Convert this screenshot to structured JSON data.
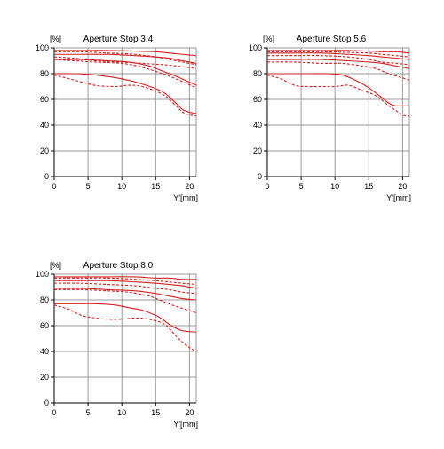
{
  "chart_data": [
    {
      "type": "line",
      "title": "Aperture Stop 3.4",
      "ylabel": "[%]",
      "xlabel": "Y'[mm]",
      "xlim": [
        0,
        21
      ],
      "ylim": [
        0,
        100
      ],
      "xticks": [
        "0",
        "5",
        "10",
        "15",
        "20"
      ],
      "yticks": [
        "0",
        "20",
        "40",
        "60",
        "80",
        "100"
      ],
      "grid": true,
      "color": "#d61f1f",
      "series": [
        {
          "style": "solid",
          "x": [
            0,
            4,
            8,
            12,
            15,
            17,
            19,
            21
          ],
          "y": [
            98,
            98,
            98,
            97.5,
            97,
            96,
            95,
            94
          ]
        },
        {
          "style": "dashed",
          "x": [
            0,
            4,
            8,
            12,
            15,
            17,
            19,
            21
          ],
          "y": [
            97,
            97,
            96,
            95,
            93,
            91,
            89,
            87
          ]
        },
        {
          "style": "solid",
          "x": [
            0,
            4,
            8,
            12,
            15,
            17,
            19,
            21
          ],
          "y": [
            95,
            95,
            95,
            94,
            93,
            92,
            90,
            88
          ]
        },
        {
          "style": "dashed",
          "x": [
            0,
            3,
            6,
            10,
            13,
            16,
            18,
            21
          ],
          "y": [
            93,
            92,
            90,
            89,
            88,
            87,
            86,
            84
          ]
        },
        {
          "style": "solid",
          "x": [
            0,
            4,
            8,
            11,
            14,
            16,
            18,
            21
          ],
          "y": [
            91,
            91,
            90,
            89,
            86,
            82,
            78,
            71
          ]
        },
        {
          "style": "dashed",
          "x": [
            0,
            3,
            6,
            10,
            13,
            16,
            18,
            21
          ],
          "y": [
            91,
            90,
            89,
            88,
            85,
            80,
            76,
            69
          ]
        },
        {
          "style": "solid",
          "x": [
            0,
            3,
            6,
            10,
            13,
            16,
            18,
            19,
            20,
            21
          ],
          "y": [
            80,
            80,
            79,
            76,
            72,
            66,
            57,
            52,
            50,
            49
          ]
        },
        {
          "style": "dashed",
          "x": [
            0,
            3,
            6,
            9,
            11,
            13,
            16,
            18,
            19,
            20,
            21
          ],
          "y": [
            79,
            75,
            71,
            70,
            71,
            70,
            64,
            55,
            50,
            48,
            47
          ]
        }
      ]
    },
    {
      "type": "line",
      "title": "Aperture Stop 5.6",
      "ylabel": "[%]",
      "xlabel": "Y'[mm]",
      "xlim": [
        0,
        21
      ],
      "ylim": [
        0,
        100
      ],
      "xticks": [
        "0",
        "5",
        "10",
        "15",
        "20"
      ],
      "yticks": [
        "0",
        "20",
        "40",
        "60",
        "80",
        "100"
      ],
      "grid": true,
      "color": "#d61f1f",
      "series": [
        {
          "style": "solid",
          "x": [
            0,
            4,
            8,
            12,
            15,
            17,
            19,
            21
          ],
          "y": [
            98,
            98,
            98,
            98,
            97.5,
            97,
            97,
            96
          ]
        },
        {
          "style": "dashed",
          "x": [
            0,
            4,
            8,
            12,
            15,
            17,
            19,
            21
          ],
          "y": [
            97,
            97,
            97,
            96.5,
            96,
            95,
            94,
            93
          ]
        },
        {
          "style": "solid",
          "x": [
            0,
            4,
            8,
            12,
            15,
            17,
            19,
            21
          ],
          "y": [
            96,
            96,
            96,
            95,
            94,
            93,
            92,
            91
          ]
        },
        {
          "style": "dashed",
          "x": [
            0,
            4,
            8,
            12,
            15,
            17,
            19,
            21
          ],
          "y": [
            94,
            94,
            94,
            93,
            91,
            89,
            88,
            87
          ]
        },
        {
          "style": "solid",
          "x": [
            0,
            4,
            8,
            12,
            15,
            17,
            19,
            21
          ],
          "y": [
            91,
            91,
            91,
            90,
            89,
            88,
            86,
            84
          ]
        },
        {
          "style": "dashed",
          "x": [
            0,
            4,
            8,
            11,
            14,
            16,
            18,
            21
          ],
          "y": [
            89,
            89,
            88,
            88,
            86,
            84,
            80,
            75
          ]
        },
        {
          "style": "solid",
          "x": [
            0,
            3,
            6,
            9,
            11,
            13,
            15,
            17,
            18,
            19,
            21
          ],
          "y": [
            80,
            80,
            80,
            80,
            79,
            75,
            69,
            61,
            57,
            55,
            55
          ]
        },
        {
          "style": "dashed",
          "x": [
            0,
            2,
            4,
            6,
            8,
            10,
            12,
            14,
            16,
            18,
            20,
            21
          ],
          "y": [
            79,
            76,
            71,
            70,
            70,
            70,
            71,
            67,
            63,
            55,
            48,
            47
          ]
        }
      ]
    },
    {
      "type": "line",
      "title": "Aperture Stop 8.0",
      "ylabel": "[%]",
      "xlabel": "Y'[mm]",
      "xlim": [
        0,
        21
      ],
      "ylim": [
        0,
        100
      ],
      "xticks": [
        "0",
        "5",
        "10",
        "15",
        "20"
      ],
      "yticks": [
        "0",
        "20",
        "40",
        "60",
        "80",
        "100"
      ],
      "grid": true,
      "color": "#d61f1f",
      "series": [
        {
          "style": "solid",
          "x": [
            0,
            4,
            8,
            12,
            15,
            17,
            19,
            21
          ],
          "y": [
            98,
            98,
            98,
            98,
            97,
            97,
            96,
            96
          ]
        },
        {
          "style": "dashed",
          "x": [
            0,
            4,
            8,
            12,
            15,
            17,
            19,
            21
          ],
          "y": [
            97,
            97,
            97,
            96,
            95,
            94,
            93,
            92
          ]
        },
        {
          "style": "solid",
          "x": [
            0,
            4,
            8,
            12,
            15,
            17,
            19,
            21
          ],
          "y": [
            95,
            95,
            95,
            94,
            93,
            92,
            91,
            89
          ]
        },
        {
          "style": "dashed",
          "x": [
            0,
            4,
            8,
            12,
            15,
            17,
            19,
            21
          ],
          "y": [
            93,
            93,
            92,
            91,
            89,
            88,
            86,
            85
          ]
        },
        {
          "style": "solid",
          "x": [
            0,
            4,
            8,
            12,
            15,
            17,
            19,
            21
          ],
          "y": [
            89,
            89,
            88,
            87,
            85,
            83,
            81,
            80
          ]
        },
        {
          "style": "dashed",
          "x": [
            0,
            4,
            8,
            11,
            14,
            16,
            18,
            21
          ],
          "y": [
            88,
            88,
            87,
            86,
            83,
            79,
            75,
            70
          ]
        },
        {
          "style": "solid",
          "x": [
            0,
            3,
            6,
            9,
            11,
            13,
            15,
            16,
            17,
            18,
            19,
            21
          ],
          "y": [
            77,
            77,
            77,
            76,
            74,
            72,
            68,
            65,
            61,
            58,
            56,
            55
          ]
        },
        {
          "style": "dashed",
          "x": [
            0,
            2,
            4,
            6,
            8,
            10,
            12,
            14,
            16,
            17,
            18,
            19,
            20,
            21
          ],
          "y": [
            76,
            73,
            68,
            66,
            65,
            65,
            66,
            65,
            62,
            58,
            52,
            47,
            43,
            40
          ]
        }
      ]
    }
  ]
}
